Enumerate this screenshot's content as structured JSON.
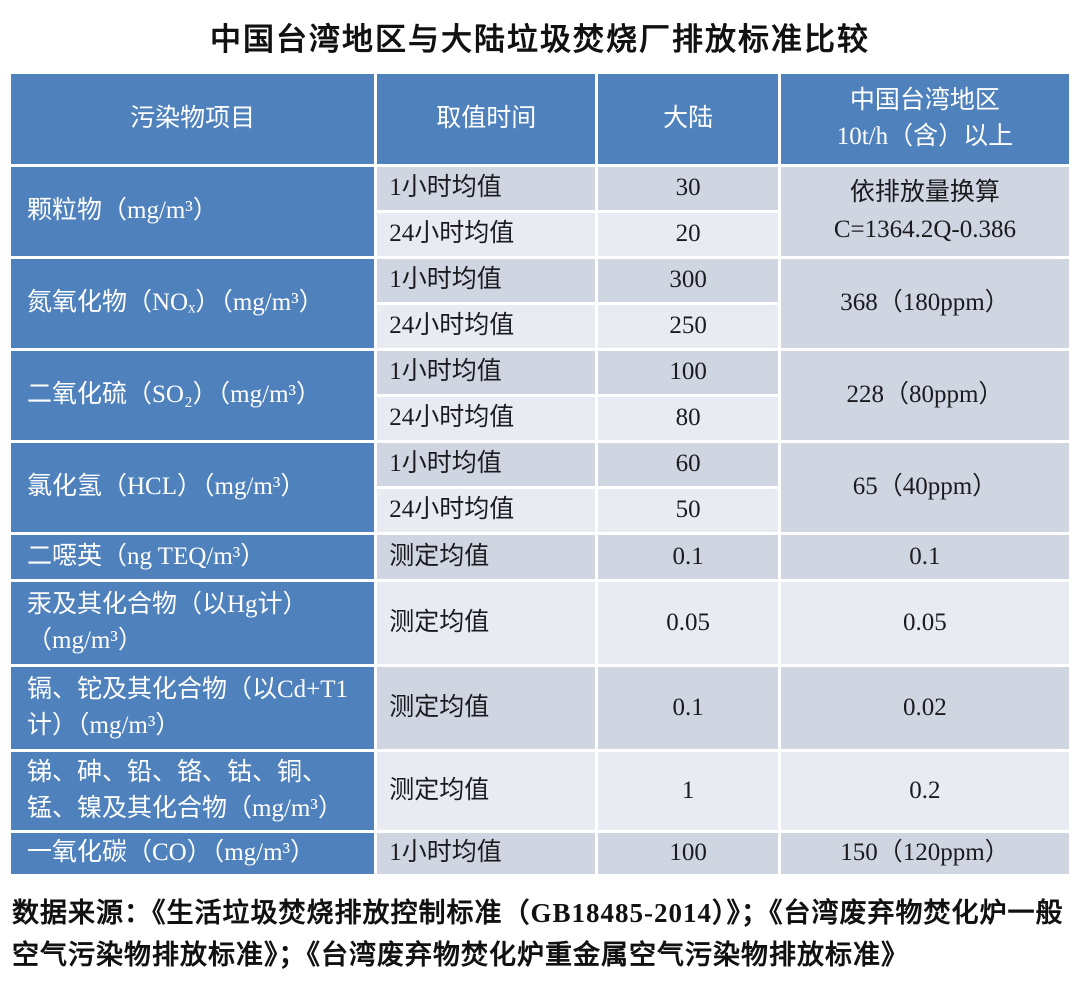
{
  "title": "中国台湾地区与大陆垃圾焚烧厂排放标准比较",
  "colors": {
    "header_blue": "#4f81bd",
    "band_dark": "#d0d5e2",
    "band_light": "#e9ebf3"
  },
  "table": {
    "headers": {
      "pollutant": "污染物项目",
      "time": "取值时间",
      "mainland": "大陆",
      "taiwan_line1": "中国台湾地区",
      "taiwan_line2": "10t/h（含）以上"
    },
    "groups": [
      {
        "pollutant": "颗粒物（mg/m³）",
        "rows": [
          {
            "time": "1小时均值",
            "mainland": "30"
          },
          {
            "time": "24小时均值",
            "mainland": "20"
          }
        ],
        "taiwan_lines": [
          "依排放量换算",
          "C=1364.2Q-0.386"
        ]
      },
      {
        "pollutant": "氮氧化物（NOₓ）（mg/m³）",
        "rows": [
          {
            "time": "1小时均值",
            "mainland": "300"
          },
          {
            "time": "24小时均值",
            "mainland": "250"
          }
        ],
        "taiwan_lines": [
          "368（180ppm）"
        ]
      },
      {
        "pollutant": "二氧化硫（SO₂）（mg/m³）",
        "rows": [
          {
            "time": "1小时均值",
            "mainland": "100"
          },
          {
            "time": "24小时均值",
            "mainland": "80"
          }
        ],
        "taiwan_lines": [
          "228（80ppm）"
        ]
      },
      {
        "pollutant": "氯化氢（HCL）（mg/m³）",
        "rows": [
          {
            "time": "1小时均值",
            "mainland": "60"
          },
          {
            "time": "24小时均值",
            "mainland": "50"
          }
        ],
        "taiwan_lines": [
          "65（40ppm）"
        ]
      }
    ],
    "single_rows": [
      {
        "pollutant": "二噁英（ng TEQ/m³）",
        "time": "测定均值",
        "mainland": "0.1",
        "taiwan": "0.1"
      },
      {
        "pollutant": "汞及其化合物（以Hg计）（mg/m³）",
        "time": "测定均值",
        "mainland": "0.05",
        "taiwan": "0.05"
      },
      {
        "pollutant": "镉、铊及其化合物（以Cd+T1计）（mg/m³）",
        "time": "测定均值",
        "mainland": "0.1",
        "taiwan": "0.02"
      },
      {
        "pollutant": "锑、砷、铅、铬、钴、铜、锰、镍及其化合物（mg/m³）",
        "time": "测定均值",
        "mainland": "1",
        "taiwan": "0.2"
      },
      {
        "pollutant": "一氧化碳（CO）（mg/m³）",
        "time": "1小时均值",
        "mainland": "100",
        "taiwan": "150（120ppm）"
      }
    ]
  },
  "footer": "数据来源：《生活垃圾焚烧排放控制标准（GB18485-2014）》；《台湾废弃物焚化炉一般空气污染物排放标准》；《台湾废弃物焚化炉重金属空气污染物排放标准》"
}
